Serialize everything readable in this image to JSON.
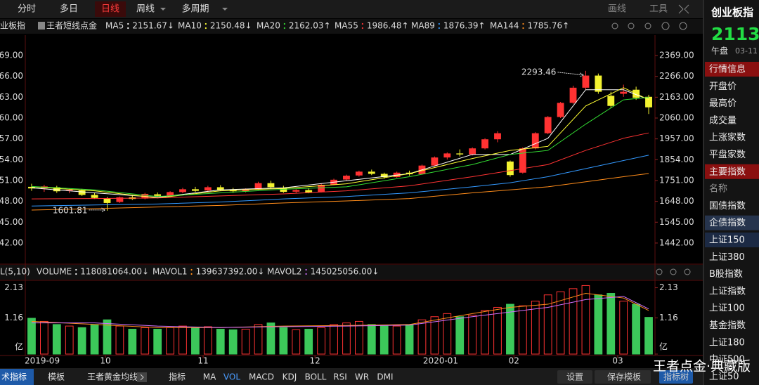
{
  "toolbar": {
    "tabs": [
      "分时",
      "多日",
      "日线",
      "周线",
      "多周期"
    ],
    "active": 2,
    "tools": [
      "画线",
      "工具"
    ]
  },
  "chart_data": [
    {
      "type": "candlestick",
      "title": "业板指",
      "subtitle": "王者短线点金",
      "open": [
        1720,
        1712,
        1718,
        1700,
        1702,
        1680,
        1662,
        1645,
        1668,
        1662,
        1683,
        1676,
        1694,
        1708,
        1702,
        1718,
        1705,
        1698,
        1708,
        1738,
        1716,
        1696,
        1704,
        1694,
        1730,
        1756,
        1776,
        1795,
        1784,
        1768,
        1790,
        1782,
        1825,
        1865,
        1885,
        1880,
        1910,
        1955,
        1845,
        1790,
        1910,
        1985,
        2065,
        2135,
        2210,
        2270,
        2170,
        2180,
        2200,
        2165
      ],
      "high": [
        1735,
        1730,
        1725,
        1712,
        1710,
        1690,
        1670,
        1672,
        1680,
        1690,
        1692,
        1698,
        1715,
        1720,
        1725,
        1728,
        1715,
        1712,
        1745,
        1750,
        1725,
        1708,
        1712,
        1735,
        1760,
        1780,
        1800,
        1805,
        1790,
        1795,
        1800,
        1830,
        1870,
        1890,
        1905,
        1915,
        1960,
        1995,
        1850,
        1915,
        1990,
        2070,
        2140,
        2220,
        2293.46,
        2280,
        2190,
        2225,
        2215,
        2175
      ],
      "low": [
        1700,
        1695,
        1690,
        1688,
        1675,
        1660,
        1601.81,
        1640,
        1655,
        1658,
        1670,
        1672,
        1688,
        1695,
        1698,
        1700,
        1690,
        1692,
        1705,
        1712,
        1690,
        1690,
        1688,
        1692,
        1728,
        1750,
        1770,
        1778,
        1760,
        1765,
        1775,
        1780,
        1820,
        1855,
        1870,
        1875,
        1905,
        1940,
        1770,
        1785,
        1905,
        1980,
        2060,
        2130,
        2200,
        2180,
        2110,
        2165,
        2150,
        2080
      ],
      "close": [
        1712,
        1722,
        1698,
        1705,
        1680,
        1665,
        1640,
        1668,
        1660,
        1685,
        1675,
        1694,
        1708,
        1700,
        1718,
        1705,
        1698,
        1708,
        1738,
        1718,
        1695,
        1704,
        1692,
        1730,
        1755,
        1775,
        1795,
        1784,
        1768,
        1790,
        1782,
        1825,
        1865,
        1885,
        1880,
        1910,
        1955,
        1985,
        1778,
        1910,
        1985,
        2065,
        2135,
        2210,
        2270,
        2190,
        2120,
        2190,
        2160,
        2113
      ],
      "up_color": "#ff3232",
      "down_color": "#f2f230",
      "xlim": [
        -0.5,
        49.5
      ],
      "xticks": [
        {
          "value": 0.84,
          "label": "2019-09"
        },
        {
          "value": 5.86,
          "label": "10"
        },
        {
          "value": 13.62,
          "label": "11"
        },
        {
          "value": 22.5,
          "label": "12"
        },
        {
          "value": 32.48,
          "label": "2020-01"
        },
        {
          "value": 38.3,
          "label": "02"
        },
        {
          "value": 46.54,
          "label": "03"
        }
      ],
      "ylim": [
        1341,
        2463
      ],
      "yticks": [
        {
          "value": 1442,
          "label": "1442.00"
        },
        {
          "value": 1545,
          "label": "1545.00"
        },
        {
          "value": 1648,
          "label": "1648.00"
        },
        {
          "value": 1751,
          "label": "1751.00"
        },
        {
          "value": 1854,
          "label": "1854.00"
        },
        {
          "value": 1957,
          "label": "1957.00"
        },
        {
          "value": 2060,
          "label": "2060.00"
        },
        {
          "value": 2163,
          "label": "2163.00"
        },
        {
          "value": 2266,
          "label": "2266.00"
        },
        {
          "value": 2369,
          "label": "2369.00"
        }
      ],
      "series": [
        {
          "name": "MA5",
          "color": "#ffffff",
          "arrow": "↓",
          "x": [
            0,
            5,
            10,
            15,
            20,
            25,
            30,
            35,
            38,
            41,
            44,
            47,
            49
          ],
          "values": [
            1715,
            1690,
            1668,
            1705,
            1715,
            1750,
            1785,
            1880,
            1880,
            1960,
            2200,
            2200,
            2151.67
          ]
        },
        {
          "name": "MA10",
          "color": "#ffff33",
          "arrow": "↓",
          "x": [
            0,
            5,
            10,
            15,
            20,
            25,
            30,
            35,
            38,
            41,
            44,
            47,
            49
          ],
          "values": [
            1720,
            1700,
            1665,
            1700,
            1712,
            1735,
            1785,
            1860,
            1900,
            1920,
            2120,
            2210,
            2150.48
          ]
        },
        {
          "name": "MA20",
          "color": "#33dd33",
          "arrow": "↑",
          "x": [
            0,
            5,
            10,
            15,
            20,
            25,
            30,
            35,
            38,
            41,
            44,
            47,
            49
          ],
          "values": [
            1722,
            1705,
            1672,
            1690,
            1708,
            1720,
            1770,
            1830,
            1880,
            1900,
            2030,
            2150,
            2162.03
          ]
        },
        {
          "name": "MA55",
          "color": "#ff3333",
          "arrow": "↑",
          "x": [
            0,
            5,
            10,
            15,
            20,
            25,
            30,
            35,
            38,
            41,
            44,
            47,
            49
          ],
          "values": [
            1660,
            1662,
            1665,
            1675,
            1685,
            1700,
            1725,
            1770,
            1800,
            1830,
            1900,
            1960,
            1986.48
          ]
        },
        {
          "name": "MA89",
          "color": "#3399ff",
          "arrow": "↑",
          "x": [
            0,
            5,
            10,
            15,
            20,
            25,
            30,
            35,
            38,
            41,
            44,
            47,
            49
          ],
          "values": [
            1625,
            1630,
            1635,
            1645,
            1660,
            1672,
            1690,
            1720,
            1740,
            1770,
            1810,
            1850,
            1876.39
          ]
        },
        {
          "name": "MA144",
          "color": "#ff8c1a",
          "arrow": "↑",
          "x": [
            0,
            5,
            10,
            15,
            20,
            25,
            30,
            35,
            38,
            41,
            44,
            47,
            49
          ],
          "values": [
            1605,
            1612,
            1620,
            1628,
            1640,
            1650,
            1662,
            1690,
            1705,
            1720,
            1745,
            1770,
            1785.76
          ]
        }
      ]
    },
    {
      "type": "bar",
      "title": "L(5,10)",
      "values": [
        1.15,
        1.05,
        0.95,
        0.9,
        0.85,
        0.95,
        1.1,
        0.9,
        0.8,
        0.85,
        0.8,
        0.85,
        0.9,
        0.85,
        0.88,
        0.8,
        0.78,
        0.8,
        0.95,
        1.0,
        0.85,
        0.78,
        0.8,
        0.85,
        0.95,
        1.0,
        1.05,
        0.95,
        0.9,
        0.9,
        0.95,
        1.1,
        1.2,
        1.3,
        1.2,
        1.25,
        1.4,
        1.5,
        1.6,
        1.55,
        1.7,
        1.9,
        2.0,
        2.1,
        2.2,
        1.9,
        1.95,
        1.7,
        1.6,
        1.18
      ],
      "up_color": "#ff3232",
      "down_color": "#3cc85a",
      "ylim": [
        0,
        2.3
      ],
      "yticks": [
        {
          "value": 0,
          "label": "亿"
        },
        1.16,
        2.13
      ],
      "series": [
        {
          "name": "VOLUME",
          "color": "#ffffff",
          "arrow": "↓",
          "last": {
            "value": 118081064,
            "label": "118081064.00"
          }
        },
        {
          "name": "MAVOL1",
          "color": "#ff8c1a",
          "arrow": "↓",
          "last": {
            "value": 139637392,
            "label": "139637392.00"
          },
          "x": [
            0,
            5,
            10,
            15,
            20,
            25,
            30,
            35,
            38,
            41,
            44,
            47,
            49
          ],
          "values": [
            1.05,
            0.95,
            0.85,
            0.85,
            0.9,
            0.92,
            0.95,
            1.3,
            1.5,
            1.6,
            1.95,
            1.8,
            1.4
          ]
        },
        {
          "name": "MAVOL2",
          "color": "#d070ff",
          "arrow": "↓",
          "last": {
            "value": 145025056,
            "label": "145025056.00"
          },
          "x": [
            0,
            5,
            10,
            15,
            20,
            25,
            30,
            35,
            38,
            41,
            44,
            47,
            49
          ],
          "values": [
            1.0,
            1.0,
            0.9,
            0.85,
            0.88,
            0.9,
            0.93,
            1.2,
            1.35,
            1.5,
            1.75,
            1.85,
            1.45
          ]
        }
      ]
    }
  ],
  "bottom_bar": {
    "left": "术指标",
    "items": [
      "模板",
      "王者黄金均线",
      "指标",
      "MA",
      "VOL",
      "MACD",
      "KDJ",
      "BOLL",
      "RSI",
      "WR",
      "DMI"
    ],
    "active": 4,
    "right": [
      "设置",
      "保存模板",
      "指标树"
    ]
  },
  "side_panel": {
    "title": "创业板指",
    "price": "2113.",
    "session": "午盘",
    "date": "03-11",
    "items": [
      {
        "text": "行情信息",
        "kind": "header"
      },
      {
        "text": "开盘价"
      },
      {
        "text": "最高价"
      },
      {
        "text": "成交量"
      },
      {
        "text": "上涨家数"
      },
      {
        "text": "平盘家数"
      },
      {
        "text": "主要指数",
        "kind": "header"
      },
      {
        "text": "名称",
        "kind": "caption"
      },
      {
        "text": "国债指数"
      },
      {
        "text": "企债指数",
        "kind": "selected"
      },
      {
        "text": "上证150",
        "kind": "hover"
      },
      {
        "text": "上证380"
      },
      {
        "text": "B股指数"
      },
      {
        "text": "上证指数"
      },
      {
        "text": "上证100"
      },
      {
        "text": "基金指数"
      },
      {
        "text": "上证180"
      },
      {
        "text": "中证500"
      },
      {
        "text": "上证50"
      }
    ]
  },
  "watermark": "王者点金·典藏版"
}
